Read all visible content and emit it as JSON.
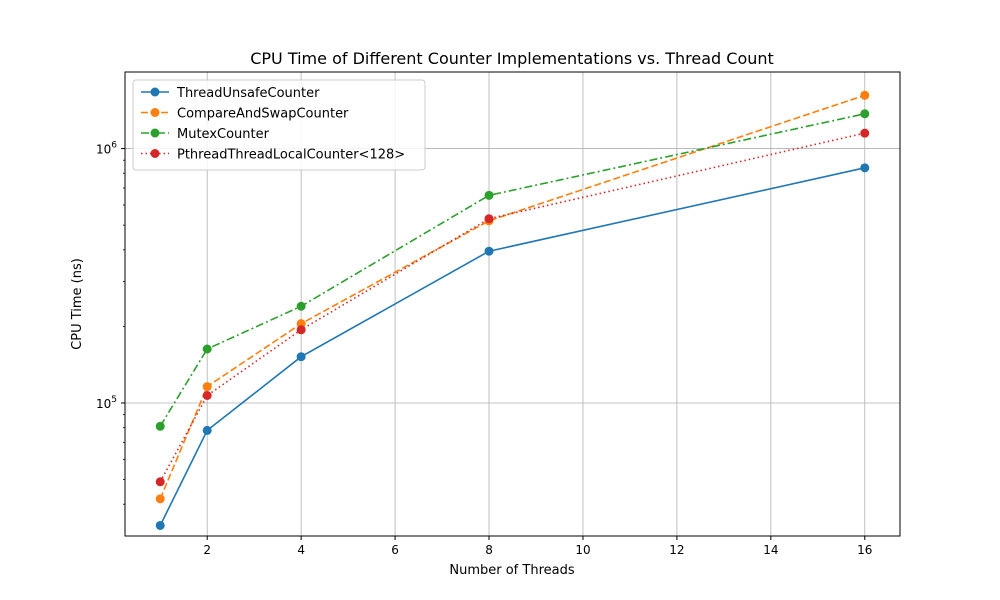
{
  "chart_data": {
    "type": "line",
    "title": "CPU Time of Different Counter Implementations vs. Thread Count",
    "xlabel": "Number of Threads",
    "ylabel": "CPU Time (ns)",
    "x": [
      1,
      2,
      4,
      8,
      16
    ],
    "xlim": [
      0.25,
      16.75
    ],
    "ylim": [
      30000,
      2000000
    ],
    "yscale": "log",
    "xticks": [
      2,
      4,
      6,
      8,
      10,
      12,
      14,
      16
    ],
    "yticks_major": [
      {
        "value": 100000,
        "base": "10",
        "exp": "5"
      },
      {
        "value": 1000000,
        "base": "10",
        "exp": "6"
      }
    ],
    "grid": true,
    "legend_position": "top-left",
    "series": [
      {
        "name": "ThreadUnsafeCounter",
        "values": [
          33000,
          78000,
          152000,
          395000,
          840000
        ],
        "color": "#1f77b4",
        "dash": "solid"
      },
      {
        "name": "CompareAndSwapCounter",
        "values": [
          42000,
          116000,
          205000,
          520000,
          1620000
        ],
        "color": "#ff7f0e",
        "dash": "dashed"
      },
      {
        "name": "MutexCounter",
        "values": [
          81000,
          163000,
          240000,
          655000,
          1370000
        ],
        "color": "#2ca02c",
        "dash": "dashdot"
      },
      {
        "name": "PthreadThreadLocalCounter<128>",
        "values": [
          49000,
          107000,
          194000,
          530000,
          1150000
        ],
        "color": "#d62728",
        "dash": "dotted"
      }
    ]
  }
}
